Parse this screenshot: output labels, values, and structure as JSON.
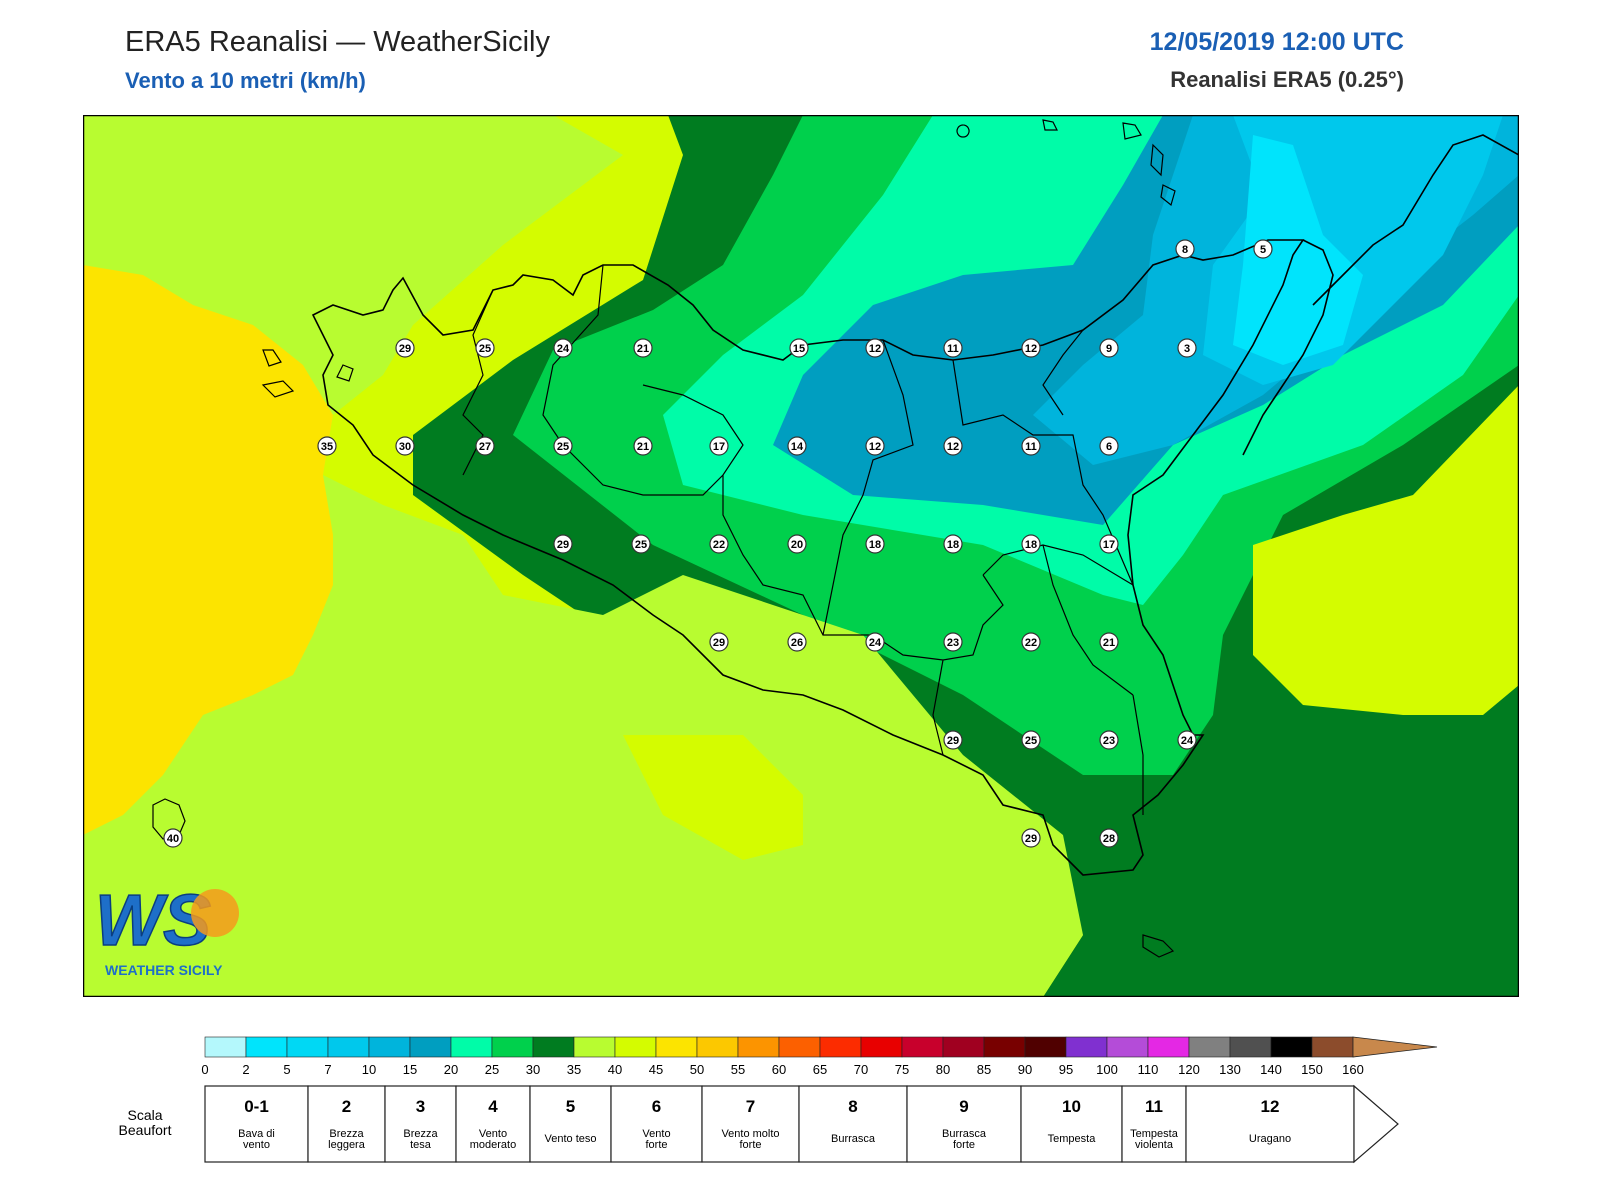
{
  "header": {
    "title": "ERA5 Reanalisi — WeatherSicily",
    "subtitle": "Vento a 10 metri (km/h)",
    "datetime": "12/05/2019 12:00 UTC",
    "source": "Reanalisi ERA5 (0.25°)"
  },
  "logo": {
    "brand": "WS",
    "name": "WEATHER SICILY"
  },
  "colors": {
    "zone_0": "#00e4fc",
    "zone_5": "#00c8ec",
    "zone_7": "#00b4dc",
    "zone_10": "#009ec0",
    "zone_15": "#00fca8",
    "zone_20": "#00d04c",
    "zone_25": "#007c20",
    "zone_30": "#b8fc30",
    "zone_35": "#d4fc00",
    "zone_40": "#fce400",
    "coast": "#000000",
    "title_blue": "#1a5fb4"
  },
  "station_values": [
    29,
    25,
    24,
    21,
    15,
    12,
    11,
    12,
    9,
    3,
    8,
    5,
    35,
    30,
    27,
    25,
    21,
    17,
    14,
    12,
    12,
    11,
    6,
    29,
    25,
    22,
    20,
    18,
    18,
    18,
    17,
    29,
    26,
    24,
    23,
    22,
    21,
    29,
    25,
    23,
    24,
    29,
    28,
    40
  ],
  "colorbar": {
    "ticks": [
      "0",
      "2",
      "5",
      "7",
      "10",
      "15",
      "20",
      "25",
      "30",
      "35",
      "40",
      "45",
      "50",
      "55",
      "60",
      "65",
      "70",
      "75",
      "80",
      "85",
      "90",
      "95",
      "100",
      "110",
      "120",
      "130",
      "140",
      "150",
      "160"
    ],
    "colors": [
      "#b4f8fc",
      "#00e4fc",
      "#00d8f4",
      "#00c8ec",
      "#00b4dc",
      "#009ec0",
      "#00fca8",
      "#00d04c",
      "#007c20",
      "#b8fc30",
      "#d4fc00",
      "#fce400",
      "#fcc800",
      "#fc9400",
      "#fc6000",
      "#fc2c00",
      "#e80000",
      "#c8002c",
      "#a00020",
      "#780000",
      "#500000",
      "#8030d0",
      "#b44cd8",
      "#e428e4",
      "#808080",
      "#505050",
      "#000000",
      "#8c4c2c",
      "#c8884c"
    ]
  },
  "beaufort": {
    "label": "Scala Beaufort",
    "cells": [
      {
        "num": "0-1",
        "desc": "Bava di vento"
      },
      {
        "num": "2",
        "desc": "Brezza leggera"
      },
      {
        "num": "3",
        "desc": "Brezza tesa"
      },
      {
        "num": "4",
        "desc": "Vento moderato"
      },
      {
        "num": "5",
        "desc": "Vento teso"
      },
      {
        "num": "6",
        "desc": "Vento forte"
      },
      {
        "num": "7",
        "desc": "Vento molto forte"
      },
      {
        "num": "8",
        "desc": "Burrasca"
      },
      {
        "num": "9",
        "desc": "Burrasca forte"
      },
      {
        "num": "10",
        "desc": "Tempesta"
      },
      {
        "num": "11",
        "desc": "Tempesta violenta"
      },
      {
        "num": "12",
        "desc": "Uragano"
      }
    ]
  }
}
